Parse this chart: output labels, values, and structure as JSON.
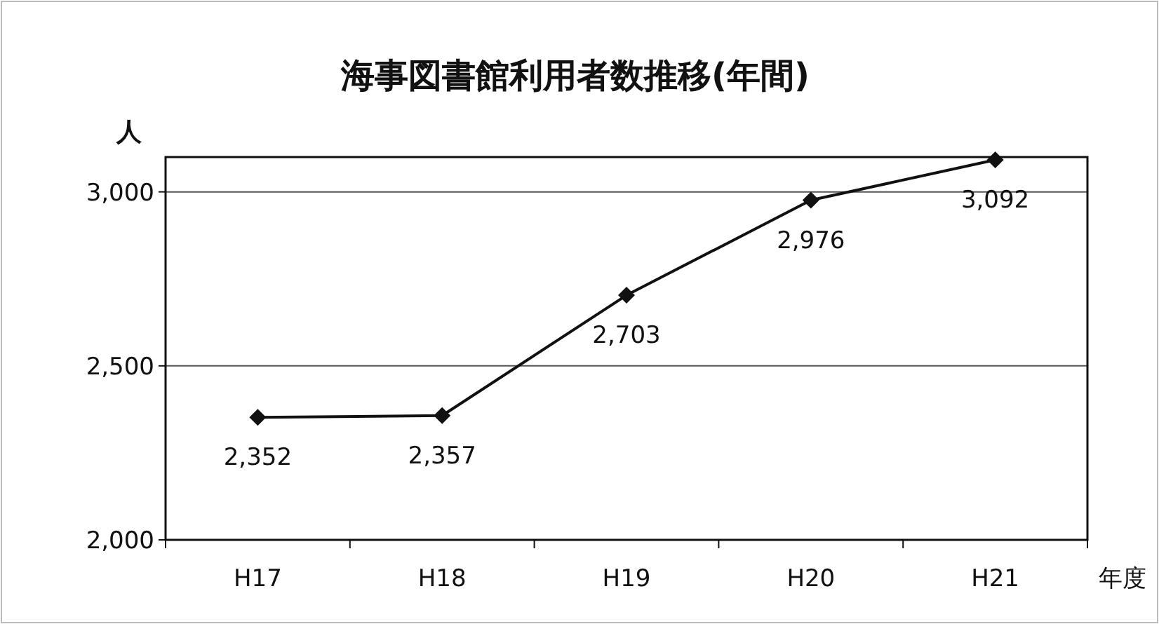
{
  "chart_data": {
    "type": "line",
    "title": "海事図書館利用者数推移(年間)",
    "ylabel": "人",
    "xlabel": "年度",
    "categories": [
      "H17",
      "H18",
      "H19",
      "H20",
      "H21"
    ],
    "series": [
      {
        "color": "#111111",
        "values": [
          2352,
          2357,
          2703,
          2976,
          3092
        ],
        "value_labels": [
          "2,352",
          "2,357",
          "2,703",
          "2,976",
          "3,092"
        ]
      }
    ],
    "ylim": [
      2000,
      3100
    ],
    "yticks": [
      {
        "value": 2000,
        "label": "2,000"
      },
      {
        "value": 2500,
        "label": "2,500"
      },
      {
        "value": 3000,
        "label": "3,000"
      }
    ],
    "grid": "y",
    "marker": "diamond",
    "line_style": "solid"
  }
}
